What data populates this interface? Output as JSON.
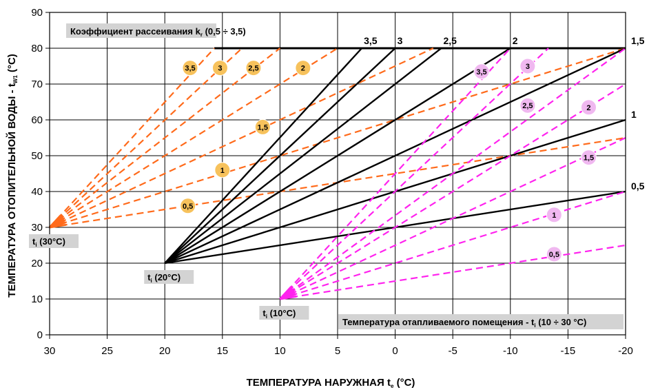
{
  "chart_data": {
    "type": "line",
    "xlabel": {
      "main": "ТЕМПЕРАТУРА НАРУЖНАЯ  t",
      "sub": "e",
      "tail": " (°C)"
    },
    "ylabel": {
      "main": "ТЕМПЕРАТУРА ОТОПИТЕЛЬНОЙ ВОДЫ - t",
      "sub": "W1",
      "tail": " (°C)"
    },
    "xlim": [
      30,
      -20
    ],
    "ylim": [
      0,
      90
    ],
    "x_ticks": [
      "30",
      "25",
      "20",
      "15",
      "10",
      "5",
      "0",
      "-5",
      "-10",
      "-15",
      "-20"
    ],
    "x_tick_values": [
      30,
      25,
      20,
      15,
      10,
      5,
      0,
      -5,
      -10,
      -15,
      -20
    ],
    "y_ticks": [
      "0",
      "10",
      "20",
      "30",
      "40",
      "50",
      "60",
      "70",
      "80",
      "90"
    ],
    "y_tick_values": [
      0,
      10,
      20,
      30,
      40,
      50,
      60,
      70,
      80,
      90
    ],
    "grid": "horizontal and vertical",
    "y_cap": 80,
    "coefficient_label": {
      "main": "Коэффициент рассеивания k",
      "sub": "r",
      "tail": " (0,5 ÷ 3,5)"
    },
    "room_label": {
      "main": "Температура отапливаемого помещения - t",
      "sub": "i",
      "tail": " (10 ÷ 30 °C)"
    },
    "coefficients": [
      0.5,
      1,
      1.5,
      2,
      2.5,
      3,
      3.5
    ],
    "groups": [
      {
        "origin_label": {
          "main": "t",
          "sub": "i",
          "tail": " (30°C)"
        },
        "origin": [
          30,
          30
        ],
        "color": "#ff6a1a",
        "dashed": true,
        "badge_color": "#f7c25c",
        "curves": [
          {
            "kr": 0.5,
            "points": [
              [
                30,
                30
              ],
              [
                -20,
                55
              ]
            ]
          },
          {
            "kr": 1,
            "points": [
              [
                30,
                30
              ],
              [
                -20,
                80
              ]
            ]
          },
          {
            "kr": 1.5,
            "points": [
              [
                30,
                30
              ],
              [
                -3.3,
                80
              ]
            ]
          },
          {
            "kr": 2,
            "points": [
              [
                30,
                30
              ],
              [
                5,
                80
              ]
            ]
          },
          {
            "kr": 2.5,
            "points": [
              [
                30,
                30
              ],
              [
                10,
                80
              ]
            ]
          },
          {
            "kr": 3,
            "points": [
              [
                30,
                30
              ],
              [
                13.3,
                80
              ]
            ]
          },
          {
            "kr": 3.5,
            "points": [
              [
                30,
                30
              ],
              [
                15.7,
                80
              ]
            ]
          }
        ],
        "badges": [
          {
            "label": "0,5",
            "x": 18,
            "y": 36
          },
          {
            "label": "1",
            "x": 15,
            "y": 46
          },
          {
            "label": "1,5",
            "x": 11.5,
            "y": 58
          },
          {
            "label": "2",
            "x": 8,
            "y": 74.5
          },
          {
            "label": "2,5",
            "x": 12.3,
            "y": 74.5
          },
          {
            "label": "3",
            "x": 15.2,
            "y": 74.5
          },
          {
            "label": "3,5",
            "x": 17.8,
            "y": 74.5
          }
        ]
      },
      {
        "origin_label": {
          "main": "t",
          "sub": "i",
          "tail": " (20°C)"
        },
        "origin": [
          20,
          20
        ],
        "color": "#000000",
        "dashed": false,
        "curves": [
          {
            "kr": 0.5,
            "points": [
              [
                20,
                20
              ],
              [
                -20,
                40
              ]
            ]
          },
          {
            "kr": 1,
            "points": [
              [
                20,
                20
              ],
              [
                -20,
                60
              ]
            ]
          },
          {
            "kr": 1.5,
            "points": [
              [
                20,
                20
              ],
              [
                -20,
                80
              ]
            ]
          },
          {
            "kr": 2,
            "points": [
              [
                20,
                20
              ],
              [
                -10,
                80
              ]
            ]
          },
          {
            "kr": 2.5,
            "points": [
              [
                20,
                20
              ],
              [
                -4,
                80
              ]
            ]
          },
          {
            "kr": 3,
            "points": [
              [
                20,
                20
              ],
              [
                0,
                80
              ]
            ]
          },
          {
            "kr": 3.5,
            "points": [
              [
                20,
                20
              ],
              [
                2.9,
                80
              ]
            ]
          }
        ],
        "end_labels": [
          {
            "label": "0,5",
            "x": -20,
            "y": 40
          },
          {
            "label": "1",
            "x": -20,
            "y": 60
          },
          {
            "label": "1,5",
            "x": -20,
            "y": 80
          },
          {
            "label": "2",
            "x": -10,
            "y": 80
          },
          {
            "label": "2,5",
            "x": -4,
            "y": 80
          },
          {
            "label": "3",
            "x": 0,
            "y": 80
          },
          {
            "label": "3,5",
            "x": 2.9,
            "y": 80
          }
        ]
      },
      {
        "origin_label": {
          "main": "t",
          "sub": "i",
          "tail": " (10°C)"
        },
        "origin": [
          10,
          10
        ],
        "color": "#ff22ee",
        "dashed": true,
        "badge_color": "#f0b8f0",
        "curves": [
          {
            "kr": 0.5,
            "points": [
              [
                10,
                10
              ],
              [
                -20,
                25
              ]
            ]
          },
          {
            "kr": 1,
            "points": [
              [
                10,
                10
              ],
              [
                -20,
                40
              ]
            ]
          },
          {
            "kr": 1.5,
            "points": [
              [
                10,
                10
              ],
              [
                -20,
                55
              ]
            ]
          },
          {
            "kr": 2,
            "points": [
              [
                10,
                10
              ],
              [
                -20,
                70
              ]
            ]
          },
          {
            "kr": 2.5,
            "points": [
              [
                10,
                10
              ],
              [
                -20,
                80
              ]
            ]
          },
          {
            "kr": 3,
            "points": [
              [
                10,
                10
              ],
              [
                -13.3,
                80
              ]
            ]
          },
          {
            "kr": 3.5,
            "points": [
              [
                10,
                10
              ],
              [
                -10,
                80
              ]
            ]
          }
        ],
        "badges": [
          {
            "label": "0,5",
            "x": -13.8,
            "y": 22.5
          },
          {
            "label": "1",
            "x": -13.8,
            "y": 33.5
          },
          {
            "label": "1,5",
            "x": -16.8,
            "y": 49.5
          },
          {
            "label": "2",
            "x": -16.8,
            "y": 63.5
          },
          {
            "label": "2,5",
            "x": -11.5,
            "y": 64
          },
          {
            "label": "3",
            "x": -11.5,
            "y": 75
          },
          {
            "label": "3,5",
            "x": -7.5,
            "y": 73.5
          }
        ]
      }
    ]
  }
}
